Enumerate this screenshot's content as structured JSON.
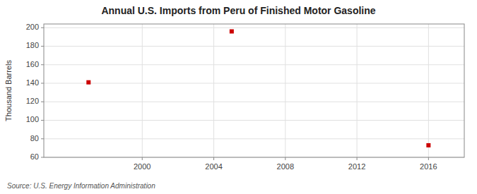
{
  "chart_data": {
    "type": "scatter",
    "title": "Annual U.S. Imports from Peru of Finished Motor Gasoline",
    "y_label": "Thousand Barrels",
    "annotations": [
      "Source: U.S. Energy Information Administration"
    ],
    "x": [
      1997,
      2005,
      2016
    ],
    "values": [
      141,
      196,
      73
    ],
    "color": "#cc0000",
    "marker": "square",
    "xlim": [
      1994.5,
      2018
    ],
    "ylim": [
      60,
      204
    ],
    "xticks": [
      2000,
      2004,
      2008,
      2012,
      2016
    ],
    "yticks": [
      60,
      80,
      100,
      120,
      140,
      160,
      180,
      200
    ],
    "grid": true
  }
}
